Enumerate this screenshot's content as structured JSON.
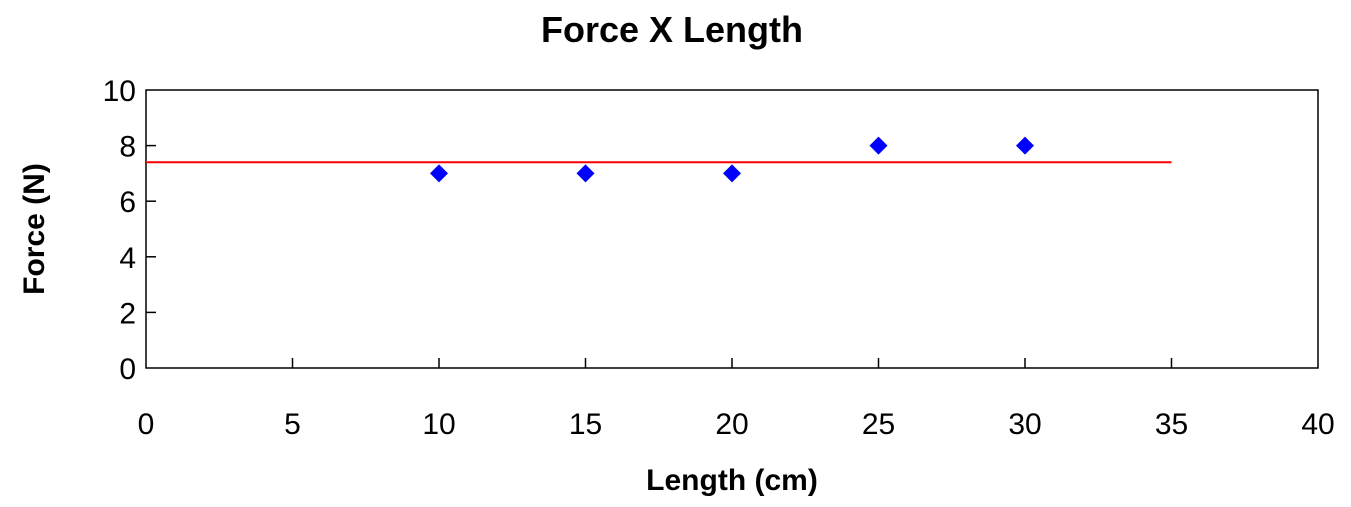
{
  "chart_data": {
    "type": "scatter",
    "title": "Force X Length",
    "xlabel": "Length (cm)",
    "ylabel": "Force (N)",
    "xlim": [
      0,
      40
    ],
    "ylim": [
      0,
      10
    ],
    "x_ticks": [
      0,
      5,
      10,
      15,
      20,
      25,
      30,
      35,
      40
    ],
    "y_ticks": [
      0,
      2,
      4,
      6,
      8,
      10
    ],
    "grid": false,
    "legend": "none",
    "series": [
      {
        "kind": "scatter",
        "marker": "diamond",
        "color": "#0000ff",
        "points": [
          {
            "x": 10,
            "y": 7
          },
          {
            "x": 15,
            "y": 7
          },
          {
            "x": 20,
            "y": 7
          },
          {
            "x": 25,
            "y": 8
          },
          {
            "x": 30,
            "y": 8
          }
        ]
      },
      {
        "kind": "line",
        "color": "#ff0000",
        "points": [
          {
            "x": 0,
            "y": 7.4
          },
          {
            "x": 35,
            "y": 7.4
          }
        ]
      }
    ]
  }
}
